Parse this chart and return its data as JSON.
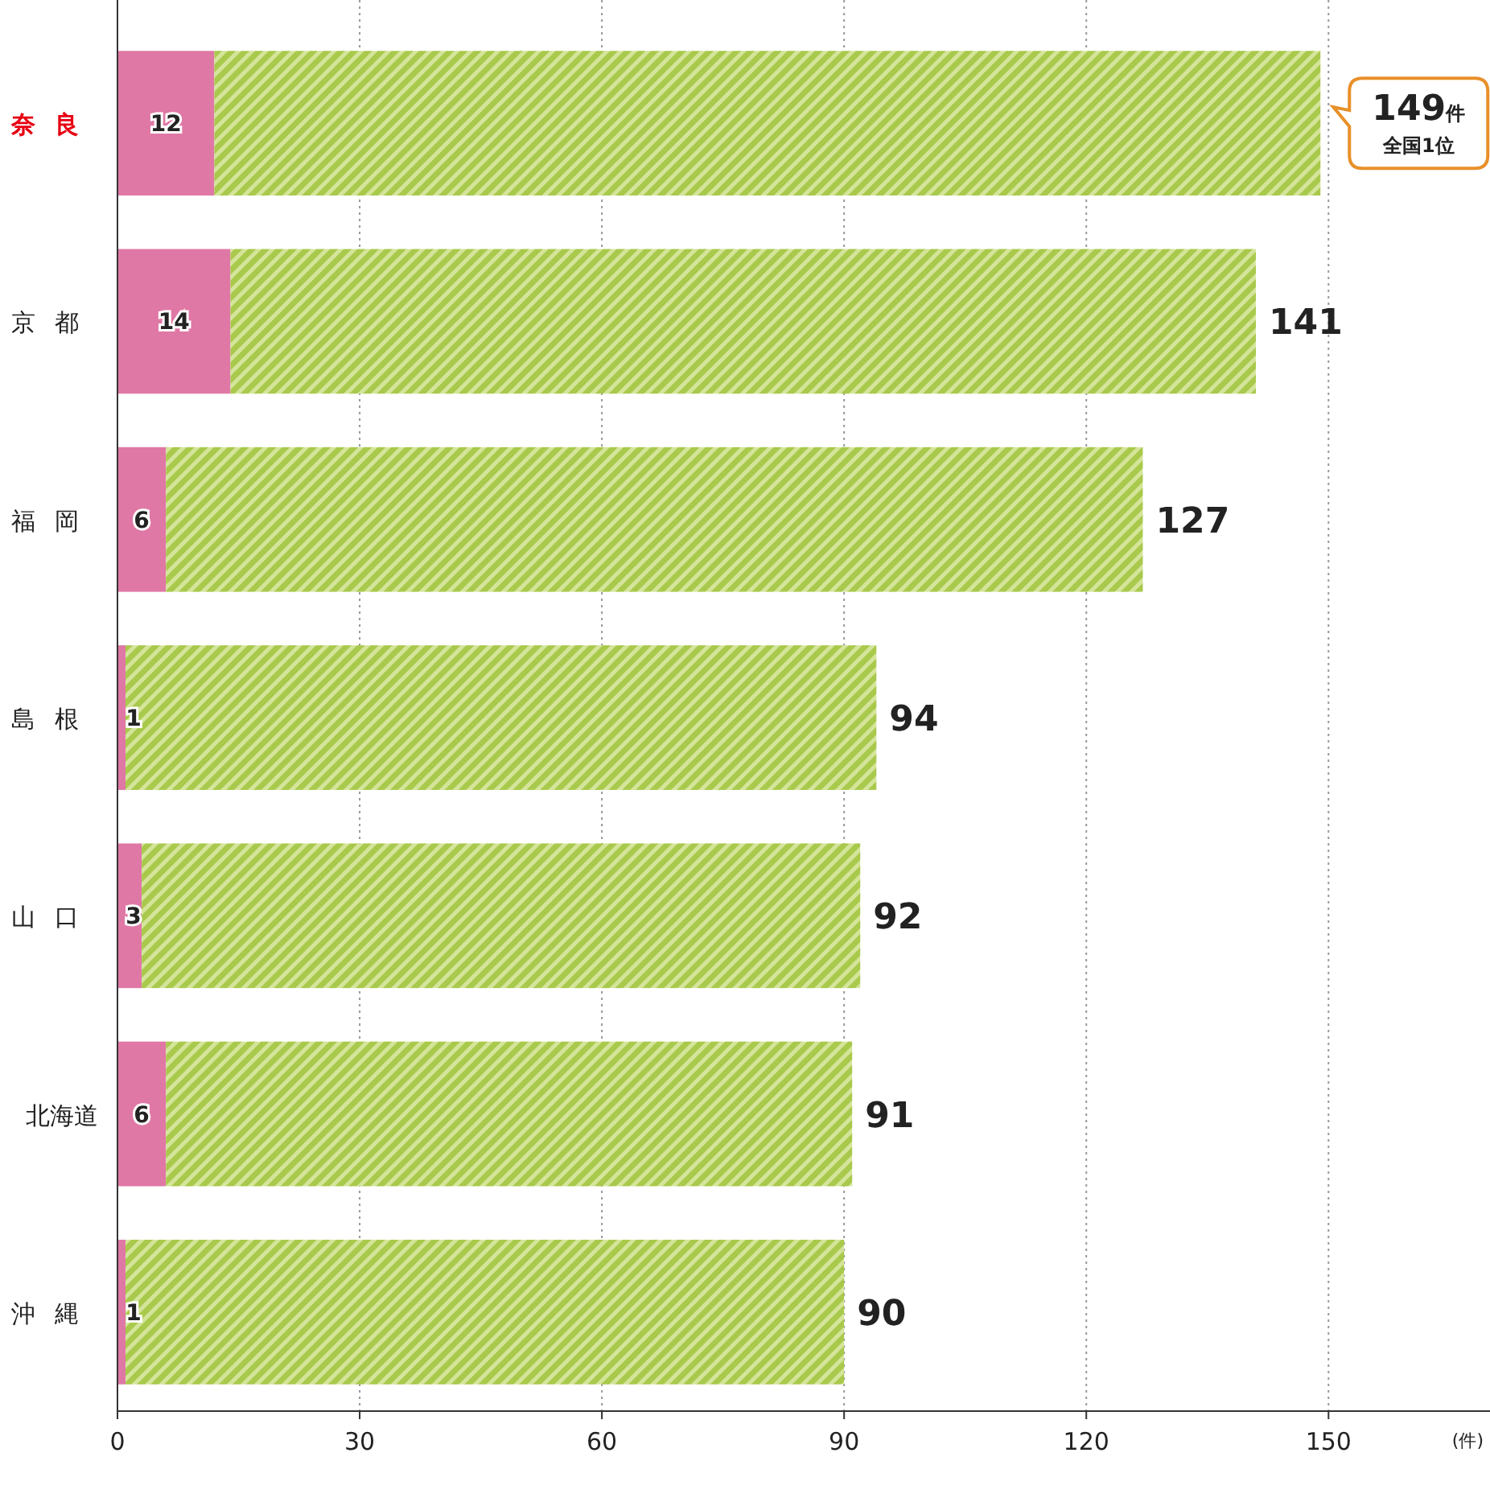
{
  "chart_data": {
    "type": "bar",
    "orientation": "horizontal",
    "stacked": true,
    "categories": [
      "奈良",
      "京都",
      "福岡",
      "島根",
      "山口",
      "北海道",
      "沖縄"
    ],
    "series": [
      {
        "color": "#df78a5",
        "values": [
          12,
          14,
          6,
          1,
          3,
          6,
          1
        ],
        "value_labels": [
          "12",
          "14",
          "6",
          "1",
          "3",
          "6",
          "1"
        ]
      },
      {
        "color": "#a9c94c",
        "values": [
          137,
          127,
          121,
          93,
          89,
          85,
          89
        ]
      }
    ],
    "totals": [
      "149件",
      "141",
      "127",
      "94",
      "92",
      "91",
      "90"
    ],
    "annotations": [
      "全国1位"
    ],
    "xlabel": "(件)",
    "xlim": [
      0,
      170
    ],
    "xticks": [
      0,
      30,
      60,
      90,
      120,
      150
    ],
    "grid": "x"
  }
}
